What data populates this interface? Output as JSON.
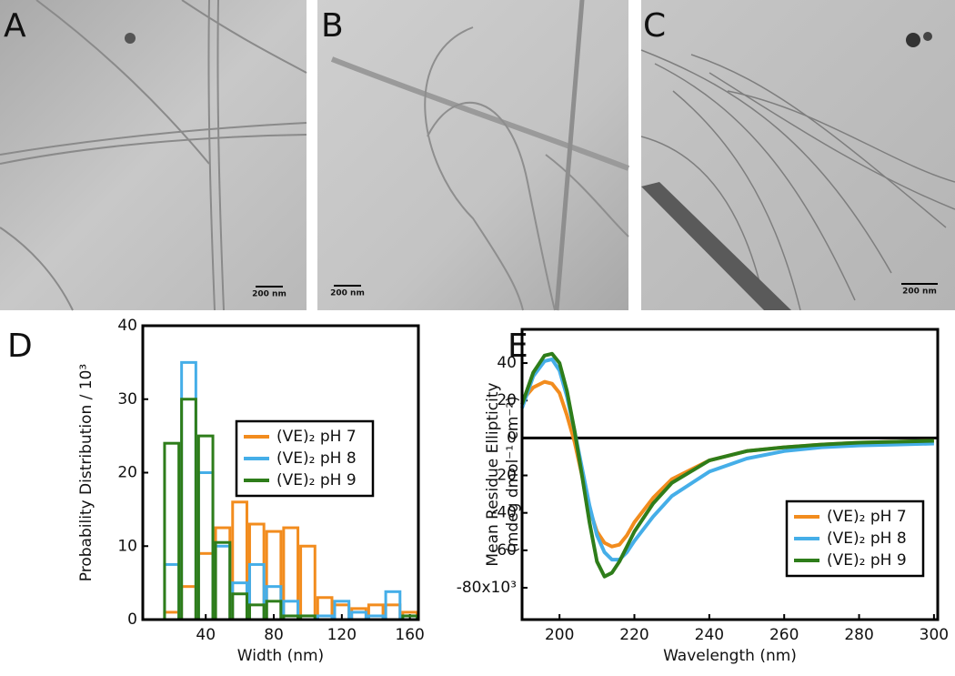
{
  "panels": [
    {
      "label": "A",
      "scale_bar": "200 nm"
    },
    {
      "label": "B",
      "scale_bar": "200 nm"
    },
    {
      "label": "C",
      "scale_bar": "200 nm"
    }
  ],
  "chart_data": [
    {
      "type": "histogram",
      "panel": "D",
      "xlabel": "Width (nm)",
      "ylabel": "Probability Distribution / 10³",
      "bins": [
        15,
        25,
        35,
        45,
        55,
        65,
        75,
        85,
        95,
        105,
        115,
        125,
        135,
        145,
        155,
        165
      ],
      "xlim": [
        3,
        165
      ],
      "xticks": [
        40,
        80,
        120,
        160
      ],
      "ylim": [
        0,
        40
      ],
      "yticks": [
        0,
        10,
        20,
        30,
        40
      ],
      "legend": "upper right",
      "series": [
        {
          "name": "(VE)₂ pH 7",
          "color": "#f28c1e",
          "values": [
            1,
            4.5,
            9,
            12.5,
            16,
            13,
            12,
            12.5,
            10,
            3,
            2,
            1.5,
            2,
            2,
            1
          ]
        },
        {
          "name": "(VE)₂ pH 8",
          "color": "#45aee8",
          "values": [
            7.5,
            35,
            20,
            10,
            5,
            7.5,
            4.5,
            2.5,
            0.5,
            0.5,
            2.5,
            1,
            0.5,
            3.8,
            0.5
          ]
        },
        {
          "name": "(VE)₂ pH 9",
          "color": "#2e7d1a",
          "values": [
            24,
            30,
            25,
            10.5,
            3.5,
            2,
            2.5,
            0.5,
            0.5,
            0,
            0,
            0,
            0,
            0,
            0.5
          ]
        }
      ]
    },
    {
      "type": "line",
      "panel": "E",
      "xlabel": "Wavelength (nm)",
      "ylabel": [
        "Mean Residue Ellipticity",
        "(mdeg dmol⁻¹ cm⁻²)"
      ],
      "x": [
        190,
        193,
        196,
        198,
        200,
        202,
        204,
        206,
        208,
        210,
        212,
        214,
        216,
        218,
        220,
        225,
        230,
        240,
        250,
        260,
        270,
        280,
        290,
        300
      ],
      "xlim": [
        190,
        301
      ],
      "xticks": [
        200,
        220,
        240,
        260,
        280,
        300
      ],
      "ylim": [
        -97,
        58
      ],
      "yticks": [
        {
          "value": -80,
          "label": "-80x10³"
        },
        -60,
        -40,
        -20,
        0,
        20,
        40
      ],
      "zero_line": true,
      "legend": "lower right",
      "series": [
        {
          "name": "(VE)₂ pH 7",
          "color": "#f28c1e",
          "values": [
            20,
            27,
            30,
            29,
            24,
            12,
            -2,
            -20,
            -38,
            -50,
            -56,
            -58,
            -57,
            -52,
            -45,
            -32,
            -22,
            -12,
            -7,
            -5,
            -3.5,
            -2.5,
            -2,
            -1.5
          ]
        },
        {
          "name": "(VE)₂ pH 8",
          "color": "#45aee8",
          "values": [
            16,
            33,
            41,
            42,
            36,
            22,
            4,
            -16,
            -36,
            -52,
            -61,
            -65,
            -65,
            -61,
            -55,
            -42,
            -31,
            -18,
            -11,
            -7,
            -5,
            -4,
            -3.5,
            -3
          ]
        },
        {
          "name": "(VE)₂ pH 9",
          "color": "#2e7d1a",
          "values": [
            18,
            35,
            44,
            45,
            40,
            25,
            4,
            -20,
            -45,
            -66,
            -74,
            -72,
            -66,
            -58,
            -50,
            -35,
            -24,
            -12,
            -7,
            -5,
            -3.5,
            -2.5,
            -2,
            -1.5
          ]
        }
      ]
    }
  ]
}
